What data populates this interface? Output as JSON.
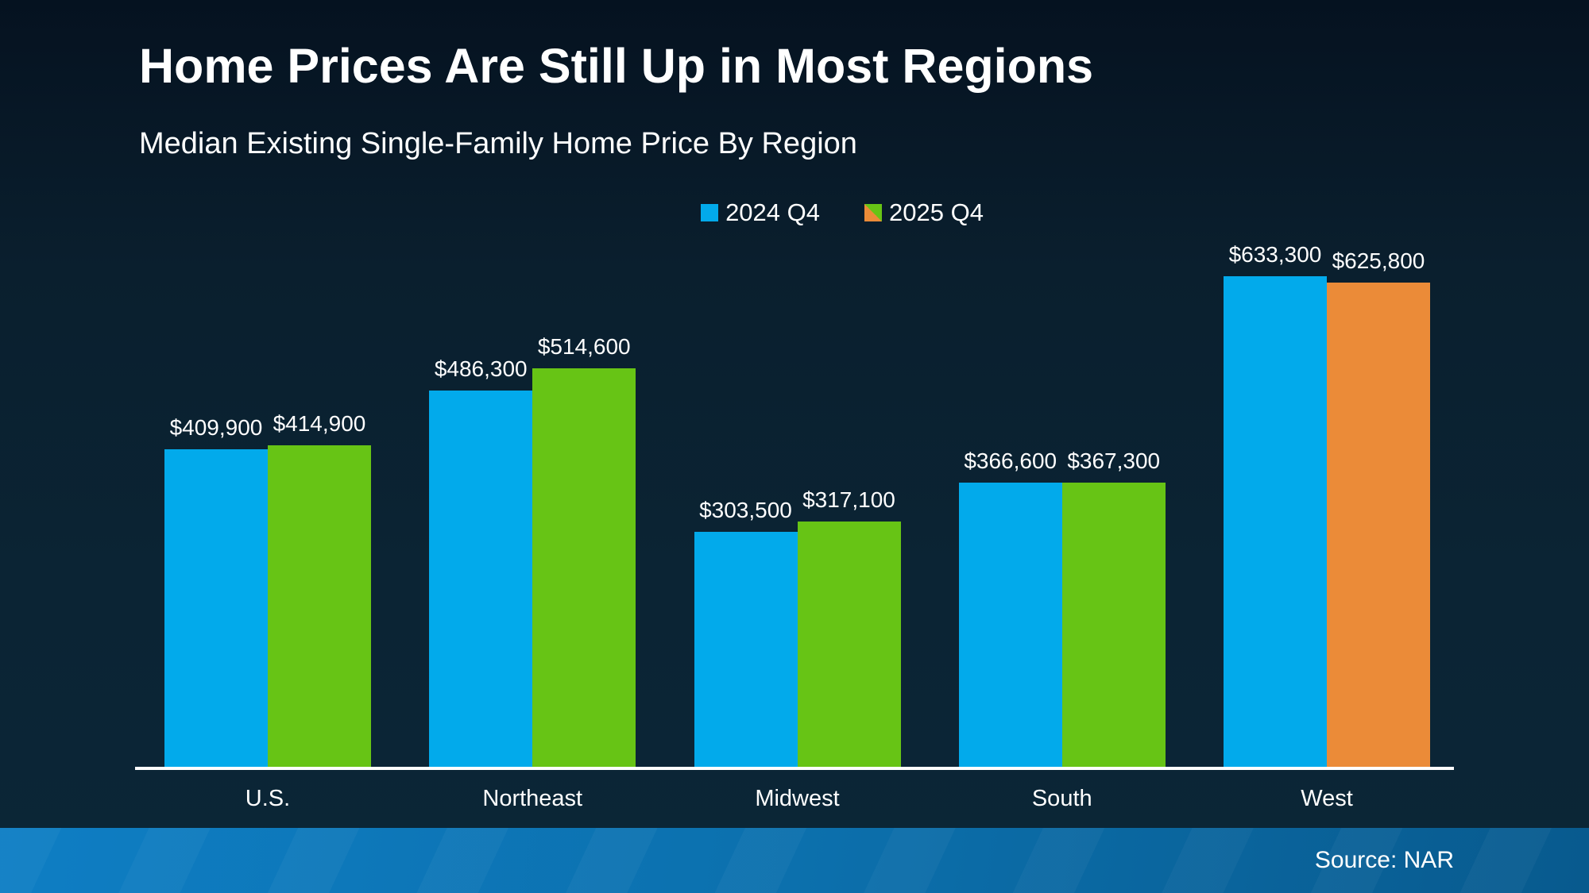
{
  "header": {
    "title": "Home Prices Are Still Up in Most Regions",
    "subtitle": "Median Existing Single-Family Home Price By Region"
  },
  "legend": {
    "items": [
      {
        "label": "2024 Q4",
        "swatch_colors": [
          "#02aaeb"
        ]
      },
      {
        "label": "2025 Q4",
        "swatch_colors": [
          "#67c415",
          "#eb8b38"
        ]
      }
    ]
  },
  "chart_data": {
    "type": "bar",
    "title": "Home Prices Are Still Up in Most Regions",
    "subtitle": "Median Existing Single-Family Home Price By Region",
    "categories": [
      "U.S.",
      "Northeast",
      "Midwest",
      "South",
      "West"
    ],
    "series": [
      {
        "name": "2024 Q4",
        "values": [
          409900,
          486300,
          303500,
          366600,
          633300
        ],
        "labels": [
          "$409,900",
          "$486,300",
          "$303,500",
          "$366,600",
          "$633,300"
        ],
        "colors": [
          "#02aaeb",
          "#02aaeb",
          "#02aaeb",
          "#02aaeb",
          "#02aaeb"
        ]
      },
      {
        "name": "2025 Q4",
        "values": [
          414900,
          514600,
          317100,
          367300,
          625800
        ],
        "labels": [
          "$414,900",
          "$514,600",
          "$317,100",
          "$367,300",
          "$625,800"
        ],
        "colors": [
          "#67c415",
          "#67c415",
          "#67c415",
          "#67c415",
          "#eb8b38"
        ]
      }
    ],
    "ylim": [
      0,
      650000
    ],
    "grid": false,
    "legend_position": "top-center",
    "value_labels_shown": true,
    "xlabel": "",
    "ylabel": ""
  },
  "footer": {
    "source": "Source: NAR"
  },
  "colors": {
    "background_top": "#051220",
    "background_bottom": "#0b2637",
    "bar_blue": "#02aaeb",
    "bar_green": "#67c415",
    "bar_orange": "#eb8b38",
    "axis_line": "#ffffff",
    "footer_gradient_left": "#0e7ec4",
    "footer_gradient_right": "#085a8e",
    "text": "#ffffff"
  }
}
